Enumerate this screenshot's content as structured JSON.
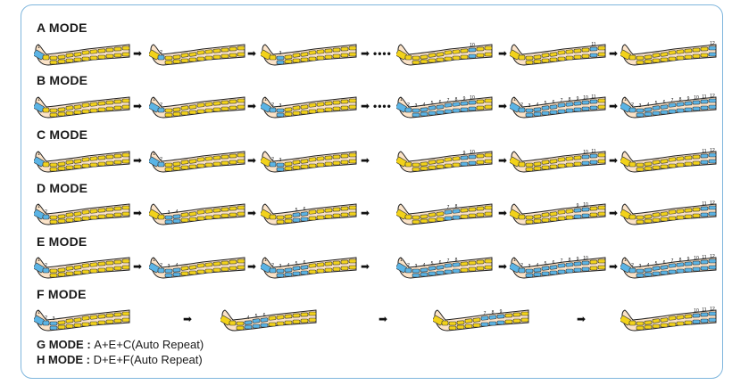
{
  "modes": [
    {
      "title": "A MODE",
      "steps": [
        {
          "labels": [
            "1"
          ]
        },
        {
          "labels": [
            "2"
          ]
        },
        {
          "labels": [
            "3"
          ]
        },
        {
          "labels": [
            "10"
          ]
        },
        {
          "labels": [
            "11"
          ]
        },
        {
          "labels": [
            "12"
          ]
        }
      ],
      "separators": [
        "arrow",
        "arrow",
        "arrow-dots",
        "arrow",
        "arrow"
      ]
    },
    {
      "title": "B MODE",
      "steps": [
        {
          "labels": [
            "1"
          ]
        },
        {
          "labels": [
            "1",
            "2"
          ]
        },
        {
          "labels": [
            "1",
            "2",
            "3"
          ]
        },
        {
          "labels": [
            "1",
            "2",
            "3",
            "4",
            "5",
            "6",
            "7",
            "8",
            "9",
            "10"
          ]
        },
        {
          "labels": [
            "1",
            "2",
            "3",
            "4",
            "5",
            "6",
            "7",
            "8",
            "9",
            "10",
            "11"
          ]
        },
        {
          "labels": [
            "1",
            "2",
            "3",
            "4",
            "5",
            "6",
            "7",
            "8",
            "9",
            "10",
            "11",
            "12"
          ]
        }
      ],
      "separators": [
        "arrow",
        "arrow",
        "arrow-dots",
        "arrow",
        "arrow"
      ]
    },
    {
      "title": "C MODE",
      "steps": [
        {
          "labels": [
            "1"
          ]
        },
        {
          "labels": [
            "1",
            "2"
          ]
        },
        {
          "labels": [
            "2",
            "3"
          ]
        },
        {
          "labels": [
            "9",
            "10"
          ]
        },
        {
          "labels": [
            "10",
            "11"
          ]
        },
        {
          "labels": [
            "11",
            "12"
          ]
        }
      ],
      "separators": [
        "arrow",
        "arrow",
        "arrow",
        "arrow",
        "arrow"
      ]
    },
    {
      "title": "D MODE",
      "steps": [
        {
          "labels": [
            "1",
            "2"
          ]
        },
        {
          "labels": [
            "3",
            "4"
          ]
        },
        {
          "labels": [
            "5",
            "6"
          ]
        },
        {
          "labels": [
            "7",
            "8"
          ]
        },
        {
          "labels": [
            "9",
            "10"
          ]
        },
        {
          "labels": [
            "11",
            "12"
          ]
        }
      ],
      "separators": [
        "arrow",
        "arrow",
        "arrow",
        "arrow",
        "arrow"
      ]
    },
    {
      "title": "E MODE",
      "steps": [
        {
          "labels": [
            "1",
            "2"
          ]
        },
        {
          "labels": [
            "1",
            "2",
            "3",
            "4"
          ]
        },
        {
          "labels": [
            "1",
            "2",
            "3",
            "4",
            "5",
            "6"
          ]
        },
        {
          "labels": [
            "1",
            "2",
            "3",
            "4",
            "5",
            "6",
            "7",
            "8"
          ]
        },
        {
          "labels": [
            "1",
            "2",
            "3",
            "4",
            "5",
            "6",
            "7",
            "8",
            "9",
            "10"
          ]
        },
        {
          "labels": [
            "1",
            "2",
            "3",
            "4",
            "5",
            "6",
            "7",
            "8",
            "9",
            "10",
            "11",
            "12"
          ]
        }
      ],
      "separators": [
        "arrow",
        "arrow",
        "arrow",
        "arrow",
        "arrow"
      ]
    },
    {
      "title": "F MODE",
      "steps": [
        {
          "labels": [
            "1",
            "2",
            "3"
          ]
        },
        {
          "labels": [
            "4",
            "5",
            "6"
          ]
        },
        {
          "labels": [
            "7",
            "8",
            "9"
          ]
        },
        {
          "labels": [
            "10",
            "11",
            "12"
          ]
        }
      ],
      "separators": [
        "arrow",
        "arrow",
        "arrow"
      ]
    }
  ],
  "footer": [
    {
      "mode": "G MODE",
      "sep": " : ",
      "desc": "A+E+C(Auto Repeat)"
    },
    {
      "mode": "H MODE",
      "sep": " : ",
      "desc": "D+E+F(Auto Repeat)"
    }
  ],
  "colors": {
    "skin": "#fbe3c8",
    "outline": "#222222",
    "chamber_idle": "#f2d21a",
    "chamber_active": "#5bb4e5",
    "frame": "#7fb6dd"
  },
  "separator_glyphs": {
    "arrow": "➡",
    "dots": "••••"
  }
}
